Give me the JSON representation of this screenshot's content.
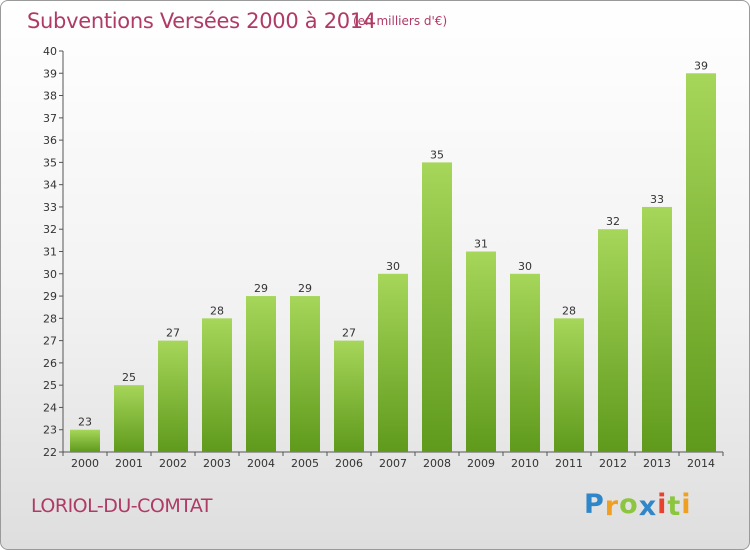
{
  "chart_data": {
    "type": "bar",
    "title": "Subventions Versées 2000 à 2014",
    "subtitle": "(en milliers d'€)",
    "categories": [
      "2000",
      "2001",
      "2002",
      "2003",
      "2004",
      "2005",
      "2006",
      "2007",
      "2008",
      "2009",
      "2010",
      "2011",
      "2012",
      "2013",
      "2014"
    ],
    "values": [
      23,
      25,
      27,
      28,
      29,
      29,
      27,
      30,
      35,
      31,
      30,
      28,
      32,
      33,
      39
    ],
    "ylim": [
      22,
      40
    ],
    "yticks": [
      "22",
      "23",
      "24",
      "25",
      "26",
      "27",
      "28",
      "29",
      "30",
      "31",
      "32",
      "33",
      "34",
      "35",
      "36",
      "37",
      "38",
      "39",
      "40"
    ],
    "grid": false,
    "bar_color": "#7dbb2e",
    "bar_color_light": "#a6d65a",
    "bar_color_dark": "#5f9a1c"
  },
  "commune_name": "LORIOL-DU-COMTAT",
  "logo": {
    "letters": [
      "P",
      "r",
      "o",
      "x",
      "i",
      "t",
      "i"
    ],
    "colors": [
      "#2f86c8",
      "#f0a020",
      "#8cc63f",
      "#2f86c8",
      "#e8412c",
      "#8cc63f",
      "#f0a020"
    ]
  },
  "colors": {
    "title": "#b03a66",
    "axis": "#555555"
  }
}
